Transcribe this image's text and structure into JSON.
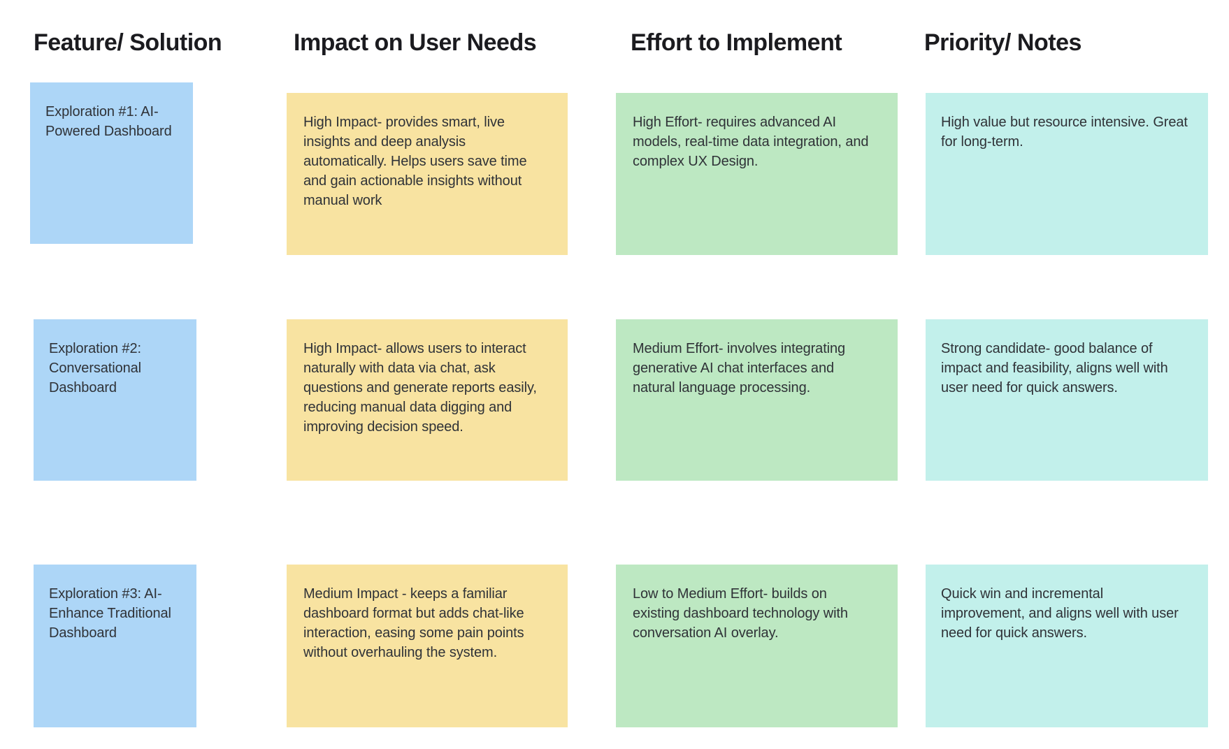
{
  "canvas": {
    "background": "#ffffff",
    "header_color": "#1b1b1f",
    "text_color": "#2f3237"
  },
  "columns": [
    {
      "header": "Feature/ Solution",
      "note_color": "#ADD6F7"
    },
    {
      "header": "Impact on User Needs",
      "note_color": "#F8E3A1"
    },
    {
      "header": "Effort to Implement",
      "note_color": "#BDE8C2"
    },
    {
      "header": "Priority/ Notes",
      "note_color": "#C2F0EB"
    }
  ],
  "rows": [
    {
      "feature": "Exploration #1: AI-\nPowered Dashboard",
      "impact": "High Impact- provides smart, live\ninsights and deep analysis\nautomatically. Helps users save time\nand gain actionable insights without\nmanual work",
      "effort": "High Effort- requires advanced AI\nmodels, real-time data integration, and\ncomplex UX Design.",
      "priority": "High value but resource intensive. Great\nfor long-term."
    },
    {
      "feature": "Exploration #2:\nConversational\nDashboard",
      "impact": "High Impact- allows users to interact\nnaturally with data via chat, ask\nquestions and generate reports easily,\nreducing manual data digging and\nimproving decision speed.",
      "effort": "Medium Effort- involves integrating\ngenerative AI chat interfaces and\nnatural language processing.",
      "priority": "Strong candidate- good balance of\nimpact and feasibility, aligns well with\nuser need for quick answers."
    },
    {
      "feature": "Exploration #3: AI-\nEnhance Traditional\nDashboard",
      "impact": "Medium Impact - keeps a familiar\ndashboard format but adds chat-like\ninteraction, easing some pain points\nwithout overhauling the system.",
      "effort": "Low to Medium Effort- builds on\nexisting dashboard technology with\nconversation AI overlay.",
      "priority": "Quick win and incremental\nimprovement, and aligns well with user\nneed for quick answers."
    }
  ]
}
